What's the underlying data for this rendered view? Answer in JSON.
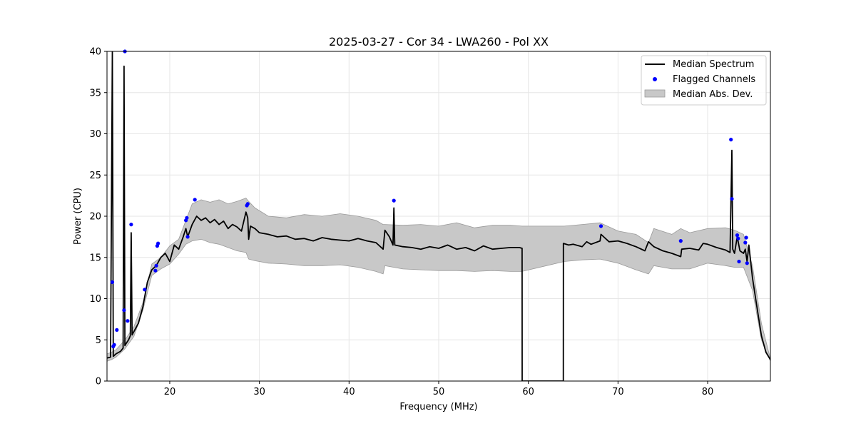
{
  "chart_data": {
    "type": "line",
    "title": "2025-03-27 - Cor 34 - LWA260 - Pol XX",
    "xlabel": "Frequency (MHz)",
    "ylabel": "Power (CPU)",
    "xlim": [
      13.0,
      87.0
    ],
    "ylim": [
      0,
      40
    ],
    "xticks": [
      20,
      30,
      40,
      50,
      60,
      70,
      80
    ],
    "yticks": [
      0,
      5,
      10,
      15,
      20,
      25,
      30,
      35,
      40
    ],
    "grid": true,
    "legend_position": "top-right",
    "colors": {
      "median": "#000000",
      "flagged": "#0000ff",
      "mad_fill": "#c8c8c8",
      "mad_edge": "#9a9a9a"
    },
    "series": [
      {
        "name": "Median Spectrum",
        "kind": "line",
        "x": [
          13.0,
          13.4,
          13.6,
          13.7,
          13.8,
          13.9,
          14.0,
          14.5,
          14.8,
          14.9,
          15.0,
          15.1,
          15.4,
          15.6,
          15.7,
          15.8,
          16.0,
          16.5,
          17.0,
          17.5,
          18.0,
          18.5,
          19.0,
          19.5,
          20.0,
          20.5,
          21.0,
          21.5,
          21.8,
          22.0,
          22.5,
          23.0,
          23.5,
          24.0,
          24.5,
          25.0,
          25.5,
          26.0,
          26.5,
          27.0,
          27.5,
          28.0,
          28.5,
          28.7,
          28.8,
          29.0,
          29.5,
          30.0,
          31.0,
          32.0,
          33.0,
          34.0,
          35.0,
          36.0,
          37.0,
          38.0,
          39.0,
          40.0,
          41.0,
          42.0,
          43.0,
          43.8,
          44.0,
          44.5,
          44.9,
          45.0,
          45.1,
          46.0,
          47.0,
          48.0,
          49.0,
          50.0,
          51.0,
          52.0,
          53.0,
          54.0,
          55.0,
          56.0,
          57.0,
          58.0,
          59.0,
          59.3,
          59.31,
          63.9,
          63.91,
          64.5,
          65.0,
          66.0,
          66.5,
          67.0,
          68.0,
          68.1,
          69.0,
          70.0,
          71.0,
          72.0,
          73.0,
          73.4,
          74.0,
          75.0,
          76.0,
          77.0,
          77.1,
          78.0,
          79.0,
          79.5,
          80.0,
          81.0,
          82.0,
          82.5,
          82.7,
          82.8,
          83.0,
          83.3,
          83.6,
          84.0,
          84.2,
          84.4,
          84.6,
          85.0,
          85.5,
          86.0,
          86.5,
          87.0
        ],
        "y": [
          2.8,
          2.9,
          40.0,
          3.0,
          3.1,
          3.2,
          3.3,
          3.6,
          4.0,
          38.2,
          4.3,
          4.5,
          5.0,
          5.5,
          18.0,
          5.6,
          6.0,
          7.0,
          9.0,
          12.0,
          13.5,
          14.0,
          15.0,
          15.5,
          14.5,
          16.5,
          16.0,
          17.5,
          18.5,
          17.5,
          19.0,
          20.0,
          19.5,
          19.8,
          19.2,
          19.6,
          19.0,
          19.4,
          18.5,
          19.0,
          18.7,
          18.2,
          20.5,
          19.8,
          17.2,
          18.8,
          18.5,
          18.0,
          17.8,
          17.5,
          17.6,
          17.2,
          17.3,
          17.0,
          17.4,
          17.2,
          17.1,
          17.0,
          17.3,
          17.0,
          16.8,
          16.0,
          18.3,
          17.5,
          16.5,
          21.0,
          16.5,
          16.3,
          16.2,
          16.0,
          16.3,
          16.1,
          16.5,
          16.0,
          16.2,
          15.8,
          16.4,
          16.0,
          16.1,
          16.2,
          16.2,
          16.1,
          0.0,
          0.0,
          16.7,
          16.5,
          16.6,
          16.3,
          16.9,
          16.6,
          17.0,
          17.8,
          16.9,
          17.0,
          16.7,
          16.3,
          15.8,
          16.9,
          16.3,
          15.8,
          15.5,
          15.1,
          16.0,
          16.1,
          15.9,
          16.7,
          16.6,
          16.2,
          15.9,
          15.6,
          28.0,
          16.0,
          15.5,
          17.5,
          15.8,
          15.5,
          16.0,
          14.5,
          16.5,
          12.5,
          9.0,
          5.5,
          3.5,
          2.6
        ]
      },
      {
        "name": "Flagged Channels",
        "kind": "scatter",
        "x": [
          13.6,
          13.7,
          13.8,
          14.1,
          14.9,
          15.0,
          15.3,
          15.7,
          17.2,
          18.4,
          18.5,
          18.6,
          18.7,
          21.8,
          21.9,
          22.0,
          22.8,
          28.6,
          28.7,
          45.0,
          68.1,
          77.0,
          82.6,
          82.7,
          83.3,
          83.4,
          83.5,
          84.2,
          84.3,
          84.4
        ],
        "y": [
          12.0,
          4.2,
          4.4,
          6.2,
          8.6,
          40.0,
          7.3,
          19.0,
          11.1,
          13.4,
          14.0,
          16.4,
          16.7,
          19.5,
          19.8,
          17.5,
          22.0,
          21.3,
          21.5,
          21.9,
          18.8,
          17.0,
          29.3,
          22.1,
          17.7,
          17.3,
          14.5,
          16.8,
          17.4,
          14.3
        ]
      },
      {
        "name": "Median Abs. Dev.",
        "kind": "band",
        "x": [
          13.0,
          13.5,
          14.0,
          15.0,
          16.0,
          17.0,
          18.0,
          19.0,
          20.0,
          21.0,
          21.8,
          22.5,
          23.5,
          24.5,
          25.5,
          26.5,
          27.5,
          28.5,
          28.8,
          29.5,
          31.0,
          33.0,
          35.0,
          37.0,
          39.0,
          41.0,
          43.0,
          43.8,
          44.0,
          46.0,
          48.0,
          50.0,
          52.0,
          54.0,
          56.0,
          58.0,
          59.3,
          64.0,
          66.0,
          68.0,
          70.0,
          72.0,
          73.4,
          74.0,
          76.0,
          77.0,
          78.0,
          80.0,
          82.0,
          83.0,
          84.0,
          85.0,
          86.0,
          87.0
        ],
        "lower": [
          2.4,
          2.6,
          2.9,
          3.9,
          5.4,
          8.6,
          12.8,
          13.6,
          14.2,
          15.4,
          16.6,
          17.0,
          17.2,
          16.8,
          16.6,
          16.2,
          15.8,
          15.6,
          14.8,
          14.6,
          14.3,
          14.2,
          14.0,
          14.0,
          14.1,
          13.8,
          13.3,
          13.0,
          14.0,
          13.6,
          13.5,
          13.4,
          13.4,
          13.3,
          13.4,
          13.3,
          13.3,
          14.5,
          14.7,
          14.8,
          14.3,
          13.5,
          13.0,
          14.0,
          13.6,
          13.6,
          13.6,
          14.3,
          14.0,
          13.8,
          13.8,
          11.0,
          5.0,
          2.4
        ],
        "upper": [
          3.3,
          3.5,
          3.8,
          5.0,
          6.6,
          9.5,
          14.2,
          15.0,
          16.4,
          17.2,
          19.5,
          21.5,
          22.0,
          21.7,
          22.0,
          21.5,
          21.8,
          22.2,
          21.8,
          21.0,
          20.0,
          19.8,
          20.2,
          20.0,
          20.3,
          20.0,
          19.5,
          19.0,
          19.0,
          18.9,
          19.0,
          18.8,
          19.2,
          18.6,
          18.9,
          18.9,
          18.8,
          18.8,
          19.0,
          19.2,
          18.2,
          17.8,
          16.8,
          18.5,
          17.8,
          18.5,
          18.0,
          18.5,
          18.6,
          18.3,
          17.8,
          14.0,
          7.0,
          2.7
        ]
      }
    ]
  }
}
